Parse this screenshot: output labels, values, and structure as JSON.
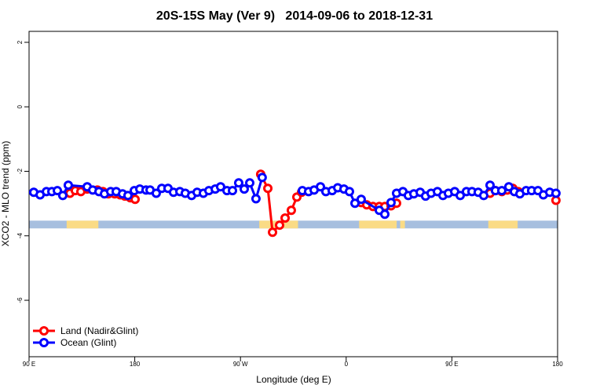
{
  "chart_data": {
    "type": "line",
    "title": "20S-15S May (Ver 9)   2014-09-06 to 2018-12-31",
    "x_label": "Longitude (deg E)",
    "y_label": "XCO2 - MLO trend (ppm)",
    "xlim": [
      90,
      540
    ],
    "ylim": [
      -7.75,
      2.34
    ],
    "xticks": [
      {
        "value": 90,
        "label": "90 E"
      },
      180,
      {
        "value": 270,
        "label": "90 W"
      },
      {
        "value": 360,
        "label": "0"
      },
      {
        "value": 450,
        "label": "90 E"
      },
      {
        "value": 540,
        "label": "180"
      }
    ],
    "yticks": [
      -6,
      -4,
      -2,
      0,
      2
    ],
    "legend": "bottom-left",
    "strip": {
      "ylim": [
        -3.77,
        -3.53
      ],
      "color": "#a7bfdf",
      "land_color": "#fadb85",
      "land_ranges": [
        [
          122,
          149
        ],
        [
          286,
          319
        ],
        [
          371,
          403
        ],
        [
          406,
          410
        ],
        [
          481,
          506
        ]
      ]
    },
    "series": [
      {
        "name": "Land (Nadir&Glint)",
        "color": "#ff0000",
        "x": [
          124.8,
          129.4,
          134.1,
          139.5,
          148.2,
          152.9,
          157.5,
          162.9,
          167.6,
          171.6,
          176.2,
          180.3,
          null,
          287.2,
          293.3,
          297.3,
          303.3,
          308.0,
          313.3,
          318.0,
          322.0,
          null,
          372.8,
          377.5,
          382.8,
          388.2,
          392.9,
          398.2,
          402.9,
          null,
          482.5,
          487.1,
          492.5,
          497.2,
          501.9,
          506.5,
          null,
          538.6
        ],
        "values": [
          -2.68,
          -2.6,
          -2.63,
          -2.55,
          -2.58,
          -2.63,
          -2.7,
          -2.7,
          -2.73,
          -2.77,
          -2.82,
          -2.87,
          null,
          -2.09,
          -2.53,
          -3.89,
          -3.67,
          -3.45,
          -3.21,
          -2.8,
          -2.65,
          null,
          -2.97,
          -3.04,
          -3.09,
          -3.09,
          -3.09,
          -3.07,
          -2.99,
          null,
          -2.68,
          -2.6,
          -2.63,
          -2.58,
          -2.53,
          -2.63,
          null,
          -2.9
        ]
      },
      {
        "name": "Ocean (Glint)",
        "color": "#0000ff",
        "x": [
          94.0,
          99.4,
          104.8,
          109.4,
          114.1,
          118.7,
          123.4,
          139.5,
          144.2,
          149.5,
          154.2,
          159.5,
          164.2,
          169.6,
          174.2,
          179.6,
          184.3,
          189.6,
          193.0,
          198.3,
          203.0,
          208.3,
          213.0,
          218.4,
          223.0,
          228.4,
          233.1,
          238.4,
          243.1,
          248.5,
          253.1,
          258.5,
          263.2,
          268.5,
          273.2,
          277.9,
          283.2,
          288.5,
          null,
          322.7,
          328.0,
          332.7,
          338.1,
          342.7,
          348.1,
          352.8,
          358.1,
          362.8,
          367.5,
          372.8,
          388.2,
          392.9,
          398.2,
          402.9,
          408.3,
          412.9,
          417.6,
          423.0,
          427.6,
          432.3,
          437.7,
          442.4,
          447.0,
          452.4,
          457.1,
          462.4,
          467.1,
          472.4,
          477.1,
          482.5,
          487.1,
          492.5,
          498.5,
          503.2,
          507.9,
          513.2,
          517.9,
          523.3,
          527.9,
          533.3,
          538.6
        ],
        "values": [
          -2.65,
          -2.73,
          -2.63,
          -2.63,
          -2.6,
          -2.75,
          -2.43,
          -2.48,
          -2.58,
          -2.63,
          -2.7,
          -2.63,
          -2.63,
          -2.7,
          -2.75,
          -2.6,
          -2.55,
          -2.58,
          -2.58,
          -2.68,
          -2.53,
          -2.53,
          -2.65,
          -2.63,
          -2.68,
          -2.75,
          -2.65,
          -2.68,
          -2.6,
          -2.55,
          -2.48,
          -2.6,
          -2.6,
          -2.36,
          -2.55,
          -2.36,
          -2.85,
          -2.19,
          null,
          -2.6,
          -2.63,
          -2.58,
          -2.48,
          -2.63,
          -2.6,
          -2.51,
          -2.55,
          -2.63,
          -2.99,
          -2.87,
          -3.21,
          -3.33,
          -2.97,
          -2.68,
          -2.63,
          -2.75,
          -2.7,
          -2.65,
          -2.77,
          -2.68,
          -2.63,
          -2.75,
          -2.68,
          -2.63,
          -2.75,
          -2.63,
          -2.63,
          -2.65,
          -2.75,
          -2.43,
          -2.6,
          -2.6,
          -2.48,
          -2.63,
          -2.7,
          -2.6,
          -2.6,
          -2.6,
          -2.73,
          -2.65,
          -2.68
        ]
      }
    ]
  }
}
